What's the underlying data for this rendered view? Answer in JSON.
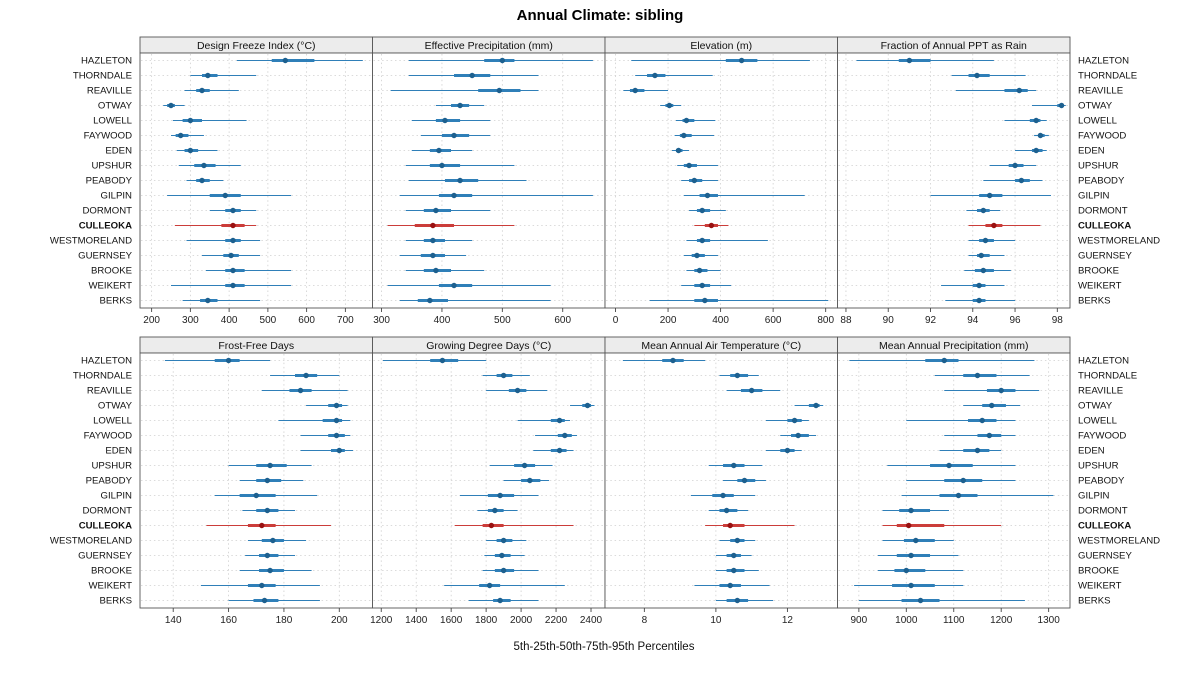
{
  "title": "Annual Climate: sibling",
  "footer": "5th-25th-50th-75th-95th Percentiles",
  "highlight_site": "CULLEOKA",
  "colors": {
    "series": "#2f7fb8",
    "series_dot": "#1d608f",
    "highlight": "#cb3d3a",
    "highlight_dot": "#991111",
    "strip_bg": "#ececec",
    "border": "#555555",
    "grid": "#cfcfcf"
  },
  "sites": [
    "HAZLETON",
    "THORNDALE",
    "REAVILLE",
    "OTWAY",
    "LOWELL",
    "FAYWOOD",
    "EDEN",
    "UPSHUR",
    "PEABODY",
    "GILPIN",
    "DORMONT",
    "CULLEOKA",
    "WESTMORELAND",
    "GUERNSEY",
    "BROOKE",
    "WEIKERT",
    "BERKS"
  ],
  "chart_data": {
    "type": "dotplot-percentiles",
    "percentiles": [
      "5th",
      "25th",
      "50th",
      "75th",
      "95th"
    ],
    "note": "values arrays are aligned to sites order; each entry is [p5,p25,p50,p75,p95]",
    "panels": [
      {
        "id": "design-freeze-index",
        "title": "Design Freeze Index (°C)",
        "xlim": [
          170,
          770
        ],
        "ticks": [
          200,
          300,
          400,
          500,
          600,
          700
        ],
        "values": [
          [
            420,
            510,
            545,
            620,
            745
          ],
          [
            300,
            330,
            345,
            370,
            470
          ],
          [
            285,
            315,
            330,
            350,
            425
          ],
          [
            230,
            240,
            250,
            260,
            285
          ],
          [
            255,
            280,
            300,
            330,
            445
          ],
          [
            250,
            262,
            275,
            295,
            335
          ],
          [
            265,
            285,
            300,
            320,
            370
          ],
          [
            270,
            310,
            335,
            365,
            430
          ],
          [
            290,
            315,
            330,
            350,
            385
          ],
          [
            240,
            350,
            390,
            430,
            560
          ],
          [
            350,
            390,
            410,
            430,
            470
          ],
          [
            260,
            380,
            410,
            440,
            470
          ],
          [
            290,
            390,
            410,
            430,
            480
          ],
          [
            330,
            385,
            405,
            425,
            480
          ],
          [
            340,
            390,
            410,
            440,
            560
          ],
          [
            250,
            390,
            410,
            440,
            560
          ],
          [
            280,
            325,
            345,
            370,
            480
          ]
        ]
      },
      {
        "id": "effective-precipitation",
        "title": "Effective Precipitation (mm)",
        "xlim": [
          285,
          670
        ],
        "ticks": [
          300,
          400,
          500,
          600
        ],
        "values": [
          [
            345,
            470,
            500,
            520,
            650
          ],
          [
            345,
            420,
            450,
            480,
            560
          ],
          [
            315,
            460,
            495,
            530,
            560
          ],
          [
            390,
            415,
            430,
            445,
            470
          ],
          [
            350,
            390,
            405,
            430,
            480
          ],
          [
            365,
            400,
            420,
            445,
            480
          ],
          [
            350,
            380,
            395,
            415,
            450
          ],
          [
            340,
            380,
            400,
            430,
            520
          ],
          [
            345,
            405,
            430,
            460,
            540
          ],
          [
            330,
            395,
            420,
            450,
            650
          ],
          [
            340,
            370,
            390,
            415,
            480
          ],
          [
            310,
            355,
            385,
            420,
            520
          ],
          [
            340,
            370,
            385,
            405,
            450
          ],
          [
            330,
            365,
            385,
            405,
            440
          ],
          [
            340,
            370,
            390,
            415,
            470
          ],
          [
            310,
            395,
            420,
            450,
            580
          ],
          [
            330,
            360,
            380,
            410,
            580
          ]
        ]
      },
      {
        "id": "elevation",
        "title": "Elevation (m)",
        "xlim": [
          -40,
          845
        ],
        "ticks": [
          0,
          200,
          400,
          600,
          800
        ],
        "values": [
          [
            60,
            420,
            480,
            540,
            740
          ],
          [
            75,
            120,
            150,
            190,
            370
          ],
          [
            30,
            55,
            75,
            110,
            200
          ],
          [
            170,
            190,
            205,
            220,
            250
          ],
          [
            230,
            255,
            270,
            300,
            380
          ],
          [
            225,
            245,
            260,
            290,
            375
          ],
          [
            215,
            230,
            240,
            255,
            280
          ],
          [
            235,
            260,
            280,
            310,
            390
          ],
          [
            250,
            280,
            300,
            330,
            390
          ],
          [
            260,
            320,
            350,
            390,
            720
          ],
          [
            280,
            310,
            330,
            360,
            420
          ],
          [
            300,
            340,
            365,
            390,
            430
          ],
          [
            270,
            310,
            330,
            360,
            580
          ],
          [
            260,
            290,
            310,
            340,
            390
          ],
          [
            270,
            300,
            320,
            350,
            400
          ],
          [
            250,
            300,
            330,
            360,
            440
          ],
          [
            130,
            300,
            340,
            390,
            810
          ]
        ]
      },
      {
        "id": "fraction-annual-ppt-as-rain",
        "title": "Fraction of Annual PPT as Rain",
        "xlim": [
          87.6,
          98.6
        ],
        "ticks": [
          88,
          90,
          92,
          94,
          96,
          98
        ],
        "values": [
          [
            88.5,
            90.5,
            91.0,
            92.0,
            95.0
          ],
          [
            93.0,
            93.8,
            94.2,
            94.8,
            96.5
          ],
          [
            93.2,
            95.5,
            96.2,
            96.6,
            97.0
          ],
          [
            96.8,
            98.0,
            98.2,
            98.3,
            98.4
          ],
          [
            95.5,
            96.7,
            97.0,
            97.2,
            97.5
          ],
          [
            96.9,
            97.1,
            97.2,
            97.4,
            97.6
          ],
          [
            96.0,
            96.8,
            97.0,
            97.3,
            97.5
          ],
          [
            94.8,
            95.7,
            96.0,
            96.4,
            97.0
          ],
          [
            94.5,
            96.0,
            96.3,
            96.7,
            97.3
          ],
          [
            92.0,
            94.3,
            94.8,
            95.4,
            97.7
          ],
          [
            93.7,
            94.2,
            94.5,
            94.8,
            95.3
          ],
          [
            93.8,
            94.6,
            95.0,
            95.4,
            97.2
          ],
          [
            93.8,
            94.3,
            94.6,
            95.0,
            96.0
          ],
          [
            93.8,
            94.2,
            94.4,
            94.8,
            95.5
          ],
          [
            93.6,
            94.1,
            94.5,
            95.0,
            95.8
          ],
          [
            92.5,
            94.0,
            94.3,
            94.6,
            95.5
          ],
          [
            92.7,
            94.0,
            94.3,
            94.6,
            96.0
          ]
        ]
      },
      {
        "id": "frost-free-days",
        "title": "Frost-Free Days",
        "xlim": [
          128,
          212
        ],
        "ticks": [
          140,
          160,
          180,
          200
        ],
        "values": [
          [
            137,
            155,
            160,
            164,
            175
          ],
          [
            175,
            184,
            188,
            192,
            200
          ],
          [
            172,
            182,
            186,
            190,
            203
          ],
          [
            188,
            196,
            199,
            201,
            203
          ],
          [
            178,
            194,
            199,
            201,
            204
          ],
          [
            186,
            196,
            199,
            202,
            204
          ],
          [
            186,
            197,
            200,
            202,
            205
          ],
          [
            160,
            170,
            175,
            181,
            190
          ],
          [
            164,
            170,
            174,
            179,
            187
          ],
          [
            155,
            164,
            170,
            177,
            192
          ],
          [
            165,
            170,
            174,
            178,
            184
          ],
          [
            152,
            167,
            172,
            177,
            197
          ],
          [
            167,
            172,
            176,
            180,
            188
          ],
          [
            166,
            171,
            174,
            178,
            184
          ],
          [
            164,
            171,
            175,
            180,
            190
          ],
          [
            150,
            167,
            172,
            177,
            193
          ],
          [
            160,
            169,
            173,
            178,
            193
          ]
        ]
      },
      {
        "id": "growing-degree-days",
        "title": "Growing Degree Days (°C)",
        "xlim": [
          1150,
          2480
        ],
        "ticks": [
          1200,
          1400,
          1600,
          1800,
          2000,
          2200,
          2400
        ],
        "values": [
          [
            1210,
            1480,
            1550,
            1640,
            1800
          ],
          [
            1780,
            1860,
            1900,
            1950,
            2050
          ],
          [
            1800,
            1930,
            1980,
            2030,
            2150
          ],
          [
            2280,
            2350,
            2380,
            2400,
            2420
          ],
          [
            1980,
            2170,
            2220,
            2250,
            2280
          ],
          [
            2080,
            2210,
            2250,
            2290,
            2320
          ],
          [
            2070,
            2170,
            2220,
            2260,
            2300
          ],
          [
            1820,
            1960,
            2020,
            2080,
            2180
          ],
          [
            1900,
            2000,
            2050,
            2110,
            2160
          ],
          [
            1650,
            1810,
            1880,
            1960,
            2100
          ],
          [
            1750,
            1810,
            1850,
            1900,
            1980
          ],
          [
            1620,
            1780,
            1830,
            1900,
            2300
          ],
          [
            1800,
            1860,
            1900,
            1950,
            2030
          ],
          [
            1790,
            1850,
            1890,
            1940,
            2020
          ],
          [
            1780,
            1850,
            1900,
            1960,
            2100
          ],
          [
            1560,
            1760,
            1820,
            1880,
            2250
          ],
          [
            1700,
            1840,
            1880,
            1940,
            2100
          ]
        ]
      },
      {
        "id": "mean-annual-air-temperature",
        "title": "Mean Annual Air Temperature (°C)",
        "xlim": [
          6.9,
          13.4
        ],
        "ticks": [
          8,
          10,
          12
        ],
        "values": [
          [
            7.4,
            8.5,
            8.8,
            9.1,
            9.7
          ],
          [
            10.1,
            10.4,
            10.6,
            10.9,
            11.2
          ],
          [
            10.3,
            10.7,
            11.0,
            11.3,
            11.8
          ],
          [
            12.2,
            12.6,
            12.8,
            12.9,
            13.0
          ],
          [
            11.4,
            12.0,
            12.2,
            12.4,
            12.6
          ],
          [
            11.8,
            12.1,
            12.3,
            12.6,
            12.8
          ],
          [
            11.4,
            11.8,
            12.0,
            12.2,
            12.4
          ],
          [
            9.8,
            10.2,
            10.5,
            10.8,
            11.3
          ],
          [
            10.2,
            10.6,
            10.8,
            11.1,
            11.4
          ],
          [
            9.3,
            9.9,
            10.2,
            10.5,
            11.1
          ],
          [
            9.8,
            10.1,
            10.3,
            10.6,
            10.9
          ],
          [
            9.7,
            10.2,
            10.4,
            10.8,
            12.2
          ],
          [
            10.1,
            10.4,
            10.6,
            10.8,
            11.1
          ],
          [
            10.0,
            10.3,
            10.5,
            10.7,
            11.0
          ],
          [
            10.0,
            10.3,
            10.5,
            10.8,
            11.2
          ],
          [
            9.4,
            10.1,
            10.4,
            10.7,
            11.5
          ],
          [
            10.0,
            10.3,
            10.6,
            10.9,
            11.6
          ]
        ]
      },
      {
        "id": "mean-annual-precipitation",
        "title": "Mean Annual Precipitation (mm)",
        "xlim": [
          855,
          1345
        ],
        "ticks": [
          900,
          1000,
          1100,
          1200,
          1300
        ],
        "values": [
          [
            880,
            1040,
            1080,
            1110,
            1270
          ],
          [
            1060,
            1120,
            1150,
            1190,
            1260
          ],
          [
            1080,
            1170,
            1200,
            1230,
            1280
          ],
          [
            1120,
            1160,
            1180,
            1210,
            1240
          ],
          [
            1000,
            1130,
            1160,
            1190,
            1230
          ],
          [
            1080,
            1150,
            1175,
            1200,
            1230
          ],
          [
            1070,
            1120,
            1150,
            1175,
            1200
          ],
          [
            960,
            1050,
            1090,
            1140,
            1230
          ],
          [
            1000,
            1080,
            1120,
            1160,
            1230
          ],
          [
            990,
            1070,
            1110,
            1150,
            1310
          ],
          [
            950,
            985,
            1010,
            1050,
            1090
          ],
          [
            950,
            980,
            1005,
            1080,
            1200
          ],
          [
            950,
            995,
            1020,
            1060,
            1100
          ],
          [
            940,
            980,
            1010,
            1050,
            1110
          ],
          [
            940,
            975,
            1000,
            1040,
            1120
          ],
          [
            890,
            970,
            1010,
            1060,
            1120
          ],
          [
            900,
            990,
            1030,
            1070,
            1250
          ]
        ]
      }
    ]
  }
}
